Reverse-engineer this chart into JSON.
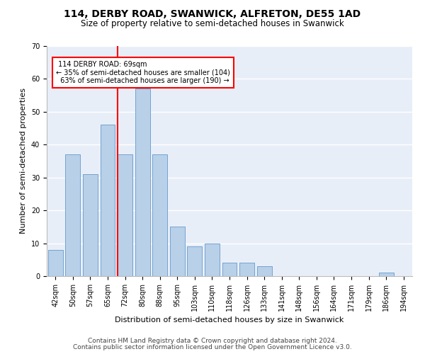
{
  "title1": "114, DERBY ROAD, SWANWICK, ALFRETON, DE55 1AD",
  "title2": "Size of property relative to semi-detached houses in Swanwick",
  "xlabel": "Distribution of semi-detached houses by size in Swanwick",
  "ylabel": "Number of semi-detached properties",
  "categories": [
    "42sqm",
    "50sqm",
    "57sqm",
    "65sqm",
    "72sqm",
    "80sqm",
    "88sqm",
    "95sqm",
    "103sqm",
    "110sqm",
    "118sqm",
    "126sqm",
    "133sqm",
    "141sqm",
    "148sqm",
    "156sqm",
    "164sqm",
    "171sqm",
    "179sqm",
    "186sqm",
    "194sqm"
  ],
  "values": [
    8,
    37,
    31,
    46,
    37,
    57,
    37,
    15,
    9,
    10,
    4,
    4,
    3,
    0,
    0,
    0,
    0,
    0,
    0,
    1,
    0
  ],
  "bar_color": "#b8d0e8",
  "bar_edge_color": "#6699cc",
  "property_sqm": 69,
  "pct_smaller": 35,
  "n_smaller": 104,
  "pct_larger": 63,
  "n_larger": 190,
  "annotation_label": "114 DERBY ROAD: 69sqm",
  "vline_color": "red",
  "footer1": "Contains HM Land Registry data © Crown copyright and database right 2024.",
  "footer2": "Contains public sector information licensed under the Open Government Licence v3.0.",
  "ylim": [
    0,
    70
  ],
  "yticks": [
    0,
    10,
    20,
    30,
    40,
    50,
    60,
    70
  ],
  "bg_color": "#e8eef8",
  "grid_color": "#ffffff",
  "title1_fontsize": 10,
  "title2_fontsize": 8.5,
  "xlabel_fontsize": 8,
  "ylabel_fontsize": 8,
  "tick_fontsize": 7,
  "footer_fontsize": 6.5
}
